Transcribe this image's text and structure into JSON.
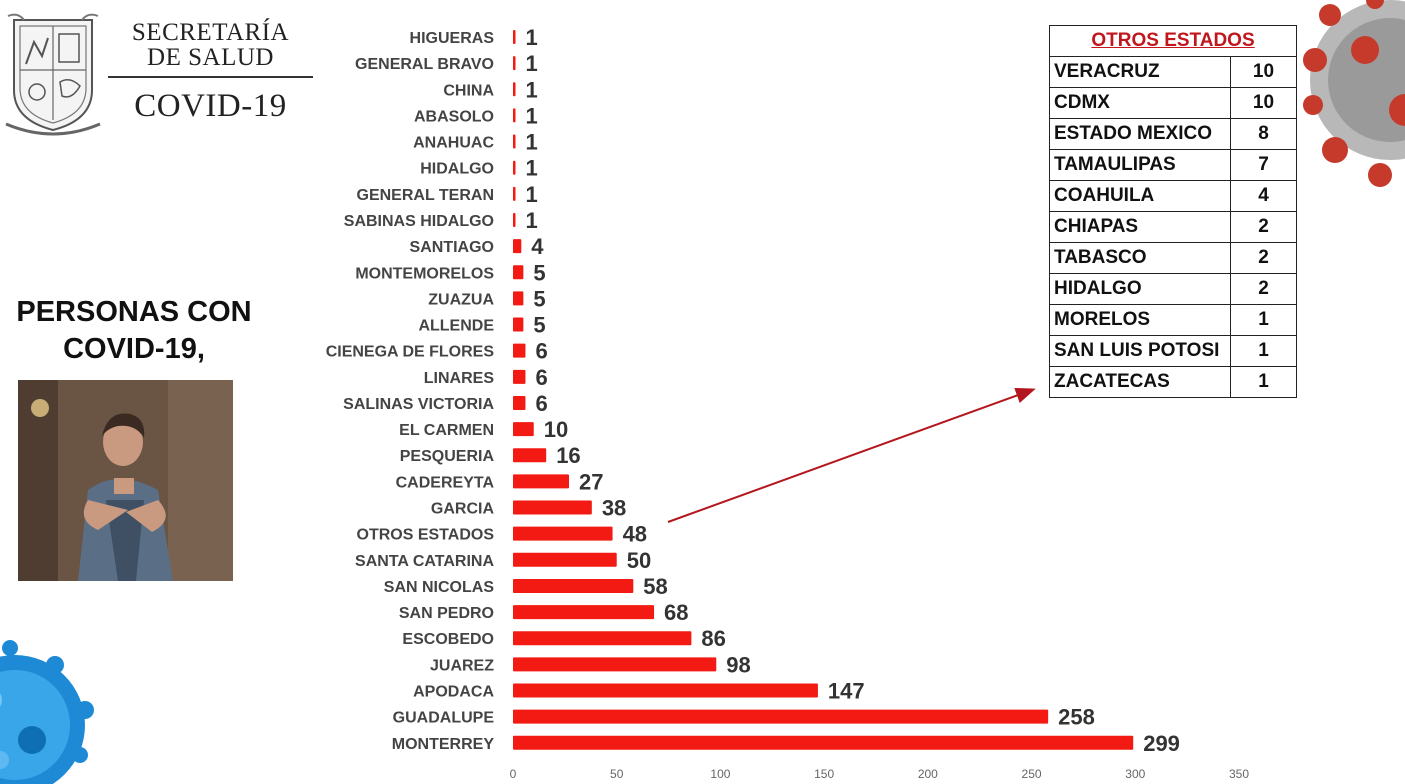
{
  "header": {
    "org_line1": "SECRETARÍA",
    "org_line2": "DE SALUD",
    "org_line3": "COVID-19"
  },
  "headline": {
    "line1": "PERSONAS CON",
    "line2": "COVID-19,"
  },
  "colors": {
    "bar": "#f21a12",
    "arrow": "#b3161c",
    "table_title": "#c0161c"
  },
  "chart_data": {
    "type": "bar",
    "orientation": "horizontal",
    "title": "",
    "xlabel": "",
    "ylabel": "",
    "xlim": [
      0,
      350
    ],
    "xticks": [
      0,
      50,
      100,
      150,
      200,
      250,
      300,
      350
    ],
    "grid": false,
    "legend": "none",
    "categories": [
      "HIGUERAS",
      "GENERAL BRAVO",
      "CHINA",
      "ABASOLO",
      "ANAHUAC",
      "HIDALGO",
      "GENERAL TERAN",
      "SABINAS HIDALGO",
      "SANTIAGO",
      "MONTEMORELOS",
      "ZUAZUA",
      "ALLENDE",
      "CIENEGA DE FLORES",
      "LINARES",
      "SALINAS VICTORIA",
      "EL CARMEN",
      "PESQUERIA",
      "CADEREYTA",
      "GARCIA",
      "OTROS ESTADOS",
      "SANTA CATARINA",
      "SAN NICOLAS",
      "SAN PEDRO",
      "ESCOBEDO",
      "JUAREZ",
      "APODACA",
      "GUADALUPE",
      "MONTERREY"
    ],
    "values": [
      1,
      1,
      1,
      1,
      1,
      1,
      1,
      1,
      4,
      5,
      5,
      5,
      6,
      6,
      6,
      10,
      16,
      27,
      38,
      48,
      50,
      58,
      68,
      86,
      98,
      147,
      258,
      299
    ]
  },
  "otros_estados_table": {
    "title": "OTROS ESTADOS",
    "rows": [
      {
        "state": "VERACRUZ",
        "count": "10"
      },
      {
        "state": "CDMX",
        "count": "10"
      },
      {
        "state": "ESTADO MEXICO",
        "count": "8"
      },
      {
        "state": "TAMAULIPAS",
        "count": "7"
      },
      {
        "state": "COAHUILA",
        "count": "4"
      },
      {
        "state": "CHIAPAS",
        "count": "2"
      },
      {
        "state": "TABASCO",
        "count": "2"
      },
      {
        "state": "HIDALGO",
        "count": "2"
      },
      {
        "state": "MORELOS",
        "count": "1"
      },
      {
        "state": "SAN LUIS POTOSI",
        "count": "1"
      },
      {
        "state": "ZACATECAS",
        "count": "1"
      }
    ]
  },
  "icons": {
    "logo": "state-shield-logo-icon",
    "virus": "coronavirus-icon",
    "video": "sign-language-interpreter-video"
  }
}
